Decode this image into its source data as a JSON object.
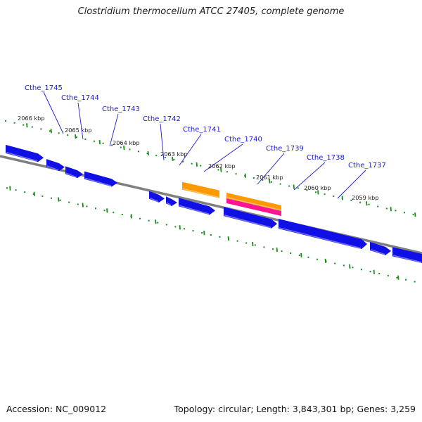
{
  "map": {
    "title": "Clostridium thermocellum ATCC 27405, complete genome",
    "accession_label": "Accession: NC_009012",
    "summary": "Topology: circular; Length: 3,843,301 bp; Genes: 3,259",
    "colors": {
      "background": "#ffffff",
      "backbone": "#808080",
      "cds_forward": "#1010e6",
      "cds_forward_shade": "#7070f0",
      "feature_orange": "#ff9900",
      "feature_orange_shade": "#ffc060",
      "feature_magenta": "#ff1493",
      "ticks": "#1a8c1a",
      "gene_label": "#1a1ad0",
      "leader_line": "#1a1ad0"
    },
    "kbp_labels": [
      "2066 kbp",
      "2065 kbp",
      "2064 kbp",
      "2063 kbp",
      "2062 kbp",
      "2061 kbp",
      "2060 kbp",
      "2059 kbp"
    ],
    "gene_labels": [
      "Cthe_1745",
      "Cthe_1744",
      "Cthe_1743",
      "Cthe_1742",
      "Cthe_1741",
      "Cthe_1740",
      "Cthe_1739",
      "Cthe_1738",
      "Cthe_1737"
    ],
    "features": [
      {
        "name": "cds-1",
        "color": "cds_forward"
      },
      {
        "name": "cds-2",
        "color": "cds_forward"
      },
      {
        "name": "cds-3",
        "color": "cds_forward"
      },
      {
        "name": "cds-4",
        "color": "cds_forward"
      },
      {
        "name": "cds-5",
        "color": "cds_forward"
      },
      {
        "name": "cds-6",
        "color": "cds_forward"
      },
      {
        "name": "cds-7",
        "color": "cds_forward"
      },
      {
        "name": "cds-8",
        "color": "cds_forward"
      },
      {
        "name": "cds-9",
        "color": "cds_forward"
      },
      {
        "name": "cds-10",
        "color": "cds_forward"
      },
      {
        "name": "cds-11",
        "color": "cds_forward"
      },
      {
        "name": "feature-orange-1",
        "color": "feature_orange"
      },
      {
        "name": "feature-orange-2",
        "color": "feature_orange"
      },
      {
        "name": "feature-magenta-1",
        "color": "feature_magenta"
      }
    ]
  }
}
